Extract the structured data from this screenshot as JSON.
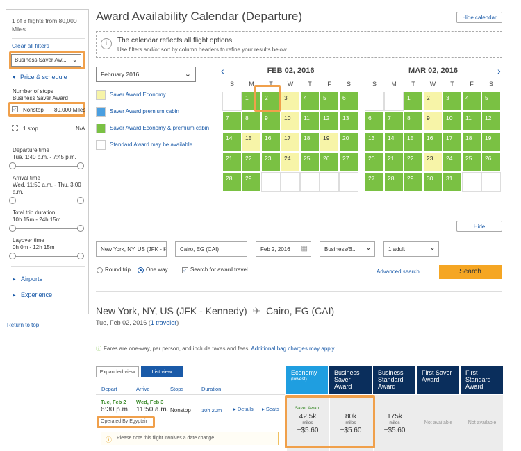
{
  "sidebar": {
    "flight_count": "1 of 8 flights from 80,000 Miles",
    "clear_filters": "Clear all filters",
    "cabin_select": "Business Saver Aw...",
    "price_schedule": "Price & schedule",
    "stops_title": "Number of stops",
    "stops_subtitle": "Business Saver Award",
    "nonstop_label": "Nonstop",
    "nonstop_value": "80,000 Miles",
    "onestop_label": "1 stop",
    "onestop_value": "N/A",
    "departure_title": "Departure time",
    "departure_range": "Tue. 1:40 p.m. - 7:45 p.m.",
    "arrival_title": "Arrival time",
    "arrival_range": "Wed. 11:50 a.m. - Thu. 3:00 a.m.",
    "duration_title": "Total trip duration",
    "duration_range": "10h 15m - 24h 15m",
    "layover_title": "Layover time",
    "layover_range": "0h 0m - 12h 15m",
    "airports": "Airports",
    "experience": "Experience",
    "return_top": "Return to top"
  },
  "calendar": {
    "title": "Award Availability Calendar (Departure)",
    "hide_calendar": "Hide calendar",
    "info_title": "The calendar reflects all flight options.",
    "info_text": "Use filters and/or sort by column headers to refine your results below.",
    "month_select": "February 2016",
    "legend": [
      {
        "label": "Saver Award Economy",
        "color": "#f7f4a8"
      },
      {
        "label": "Saver Award premium cabin",
        "color": "#4a9fe0"
      },
      {
        "label": "Saver Award Economy & premium cabin",
        "color": "#7ac143"
      },
      {
        "label": "Standard Award may be available",
        "color": "#ffffff"
      }
    ],
    "dow": [
      "S",
      "M",
      "T",
      "W",
      "T",
      "F",
      "S"
    ],
    "feb": {
      "header": "FEB 02, 2016",
      "days": [
        {
          "d": "",
          "c": "w"
        },
        {
          "d": "1",
          "c": "g"
        },
        {
          "d": "2",
          "c": "g"
        },
        {
          "d": "3",
          "c": "y"
        },
        {
          "d": "4",
          "c": "g"
        },
        {
          "d": "5",
          "c": "g"
        },
        {
          "d": "6",
          "c": "g"
        },
        {
          "d": "7",
          "c": "g"
        },
        {
          "d": "8",
          "c": "g"
        },
        {
          "d": "9",
          "c": "g"
        },
        {
          "d": "10",
          "c": "y"
        },
        {
          "d": "11",
          "c": "g"
        },
        {
          "d": "12",
          "c": "g"
        },
        {
          "d": "13",
          "c": "g"
        },
        {
          "d": "14",
          "c": "g"
        },
        {
          "d": "15",
          "c": "y"
        },
        {
          "d": "16",
          "c": "g"
        },
        {
          "d": "17",
          "c": "y"
        },
        {
          "d": "18",
          "c": "g"
        },
        {
          "d": "19",
          "c": "y"
        },
        {
          "d": "20",
          "c": "g"
        },
        {
          "d": "21",
          "c": "g"
        },
        {
          "d": "22",
          "c": "g"
        },
        {
          "d": "23",
          "c": "g"
        },
        {
          "d": "24",
          "c": "y"
        },
        {
          "d": "25",
          "c": "g"
        },
        {
          "d": "26",
          "c": "g"
        },
        {
          "d": "27",
          "c": "g"
        },
        {
          "d": "28",
          "c": "g"
        },
        {
          "d": "29",
          "c": "g"
        },
        {
          "d": "",
          "c": "w"
        },
        {
          "d": "",
          "c": "w"
        },
        {
          "d": "",
          "c": "w"
        },
        {
          "d": "",
          "c": "w"
        },
        {
          "d": "",
          "c": "w"
        }
      ]
    },
    "mar": {
      "header": "MAR 02, 2016",
      "days": [
        {
          "d": "",
          "c": "w"
        },
        {
          "d": "",
          "c": "w"
        },
        {
          "d": "1",
          "c": "g"
        },
        {
          "d": "2",
          "c": "y"
        },
        {
          "d": "3",
          "c": "g"
        },
        {
          "d": "4",
          "c": "g"
        },
        {
          "d": "5",
          "c": "g"
        },
        {
          "d": "6",
          "c": "g"
        },
        {
          "d": "7",
          "c": "g"
        },
        {
          "d": "8",
          "c": "g"
        },
        {
          "d": "9",
          "c": "y"
        },
        {
          "d": "10",
          "c": "g"
        },
        {
          "d": "11",
          "c": "g"
        },
        {
          "d": "12",
          "c": "g"
        },
        {
          "d": "13",
          "c": "g"
        },
        {
          "d": "14",
          "c": "g"
        },
        {
          "d": "15",
          "c": "g"
        },
        {
          "d": "16",
          "c": "g"
        },
        {
          "d": "17",
          "c": "g"
        },
        {
          "d": "18",
          "c": "g"
        },
        {
          "d": "19",
          "c": "g"
        },
        {
          "d": "20",
          "c": "g"
        },
        {
          "d": "21",
          "c": "g"
        },
        {
          "d": "22",
          "c": "g"
        },
        {
          "d": "23",
          "c": "y"
        },
        {
          "d": "24",
          "c": "g"
        },
        {
          "d": "25",
          "c": "g"
        },
        {
          "d": "26",
          "c": "g"
        },
        {
          "d": "27",
          "c": "g"
        },
        {
          "d": "28",
          "c": "g"
        },
        {
          "d": "29",
          "c": "g"
        },
        {
          "d": "30",
          "c": "g"
        },
        {
          "d": "31",
          "c": "g"
        },
        {
          "d": "",
          "c": "w"
        },
        {
          "d": "",
          "c": "w"
        }
      ]
    }
  },
  "search": {
    "hide": "Hide",
    "origin": "New York, NY, US (JFK - K",
    "destination": "Cairo, EG (CAI)",
    "date": "Feb 2, 2016",
    "cabin": "Business/B...",
    "travelers": "1 adult",
    "round_trip": "Round trip",
    "one_way": "One way",
    "award_travel": "Search for award travel",
    "advanced": "Advanced search",
    "search_button": "Search"
  },
  "results": {
    "route": "New York, NY, US (JFK - Kennedy)",
    "route_dest": "Cairo, EG (CAI)",
    "date": "Tue, Feb 02, 2016 (",
    "travelers": "1 traveler",
    "date_close": ")",
    "fares_note": "Fares are one-way, per person, and include taxes and fees.",
    "bag_link": "Additional bag charges may apply.",
    "expanded_view": "Expanded view",
    "list_view": "List view",
    "col_depart": "Depart",
    "col_arrive": "Arrive",
    "col_stops": "Stops",
    "col_duration": "Duration",
    "dep_date": "Tue, Feb 2",
    "dep_time": "6:30 p.m.",
    "arr_date": "Wed, Feb 3",
    "arr_time": "11:50 a.m.",
    "stops": "Nonstop",
    "duration": "10h 20m",
    "details": "Details",
    "seats": "Seats",
    "operated": "Operated By Egyptair",
    "date_change": "Please note this flight involves a date change.",
    "columns": [
      {
        "title": "Economy",
        "sub": "(lowest)",
        "color": "#1f9ee0"
      },
      {
        "title": "Business Saver Award",
        "sub": "",
        "color": "#0a2e5c"
      },
      {
        "title": "Business Standard Award",
        "sub": "",
        "color": "#0a2e5c"
      },
      {
        "title": "First Saver Award",
        "sub": "",
        "color": "#0a2e5c"
      },
      {
        "title": "First Standard Award",
        "sub": "",
        "color": "#0a2e5c"
      }
    ],
    "economy_tag": "Saver Award",
    "economy_miles": "42.5k",
    "economy_fee": "+$5.60",
    "bsa_miles": "80k",
    "bsa_fee": "+$5.60",
    "bstd_miles": "175k",
    "bstd_fee": "+$5.60",
    "miles_label": "miles",
    "first_saver": "Not available",
    "first_std": "Not available"
  }
}
